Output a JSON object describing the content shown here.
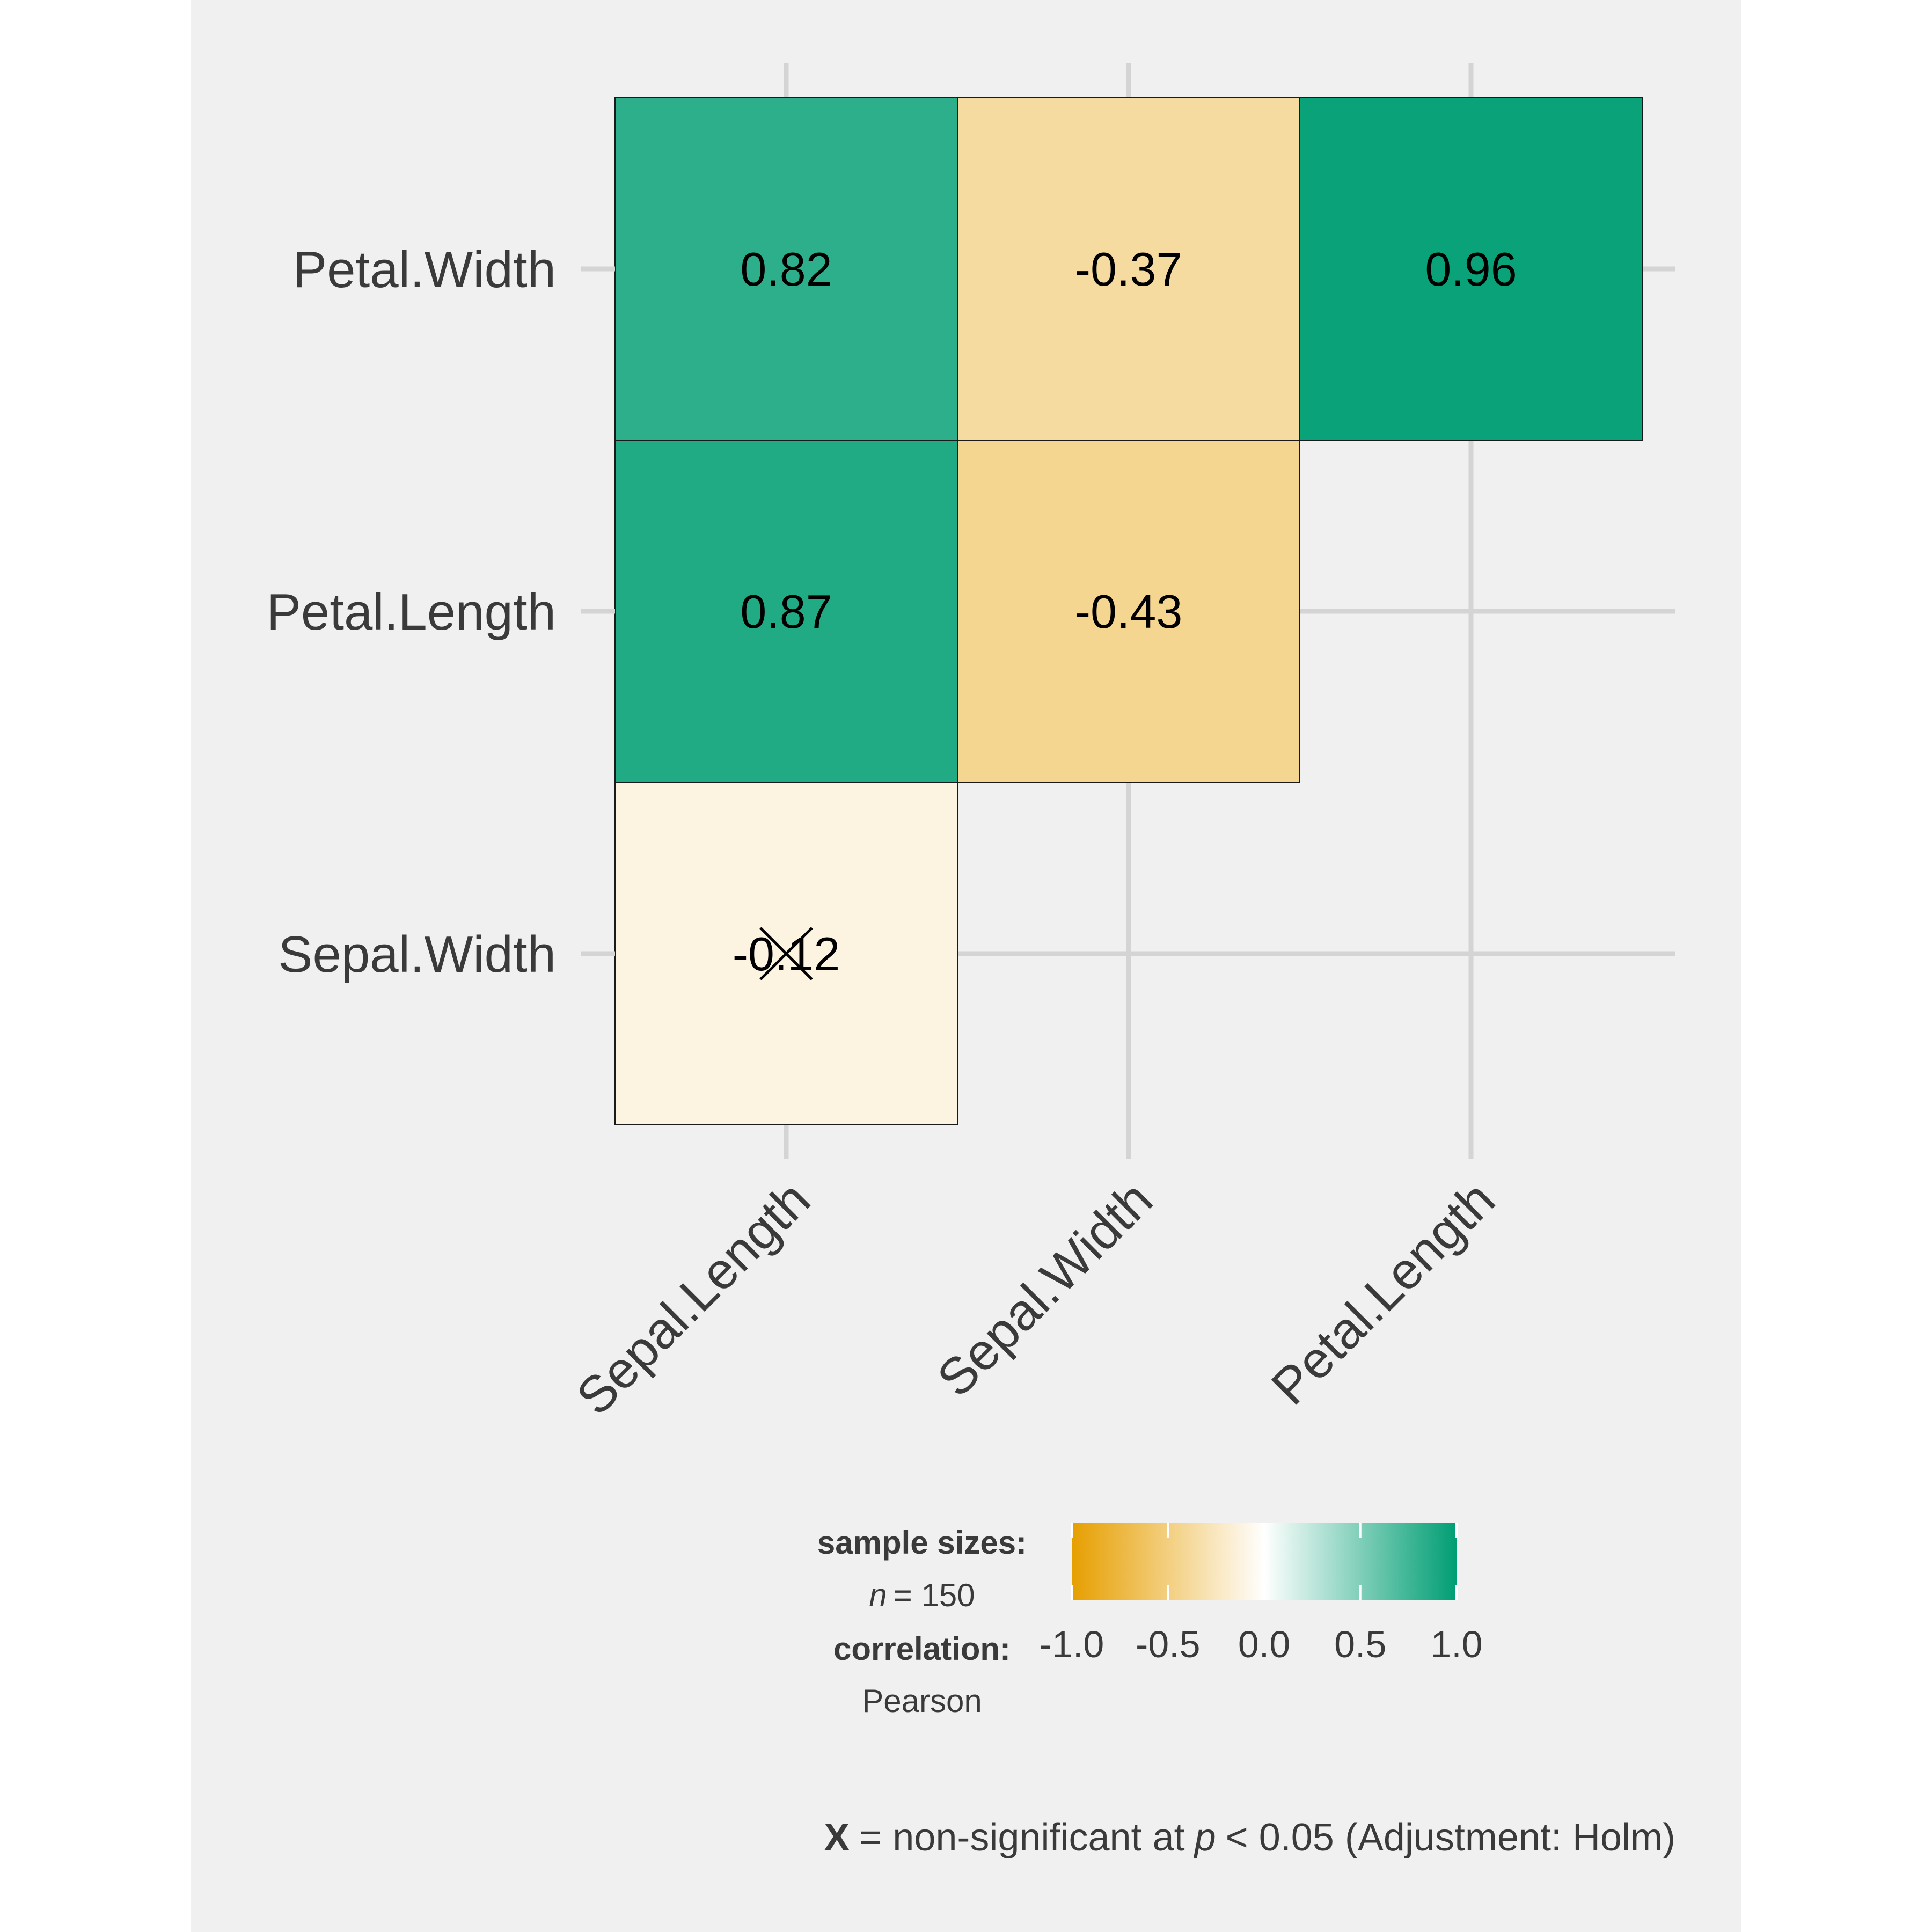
{
  "chart_data": {
    "type": "heatmap",
    "rows": [
      "Petal.Width",
      "Petal.Length",
      "Sepal.Width"
    ],
    "columns": [
      "Sepal.Length",
      "Sepal.Width",
      "Petal.Length"
    ],
    "cells": [
      {
        "row": "Petal.Width",
        "col": "Sepal.Length",
        "value": 0.82,
        "label": "0.82",
        "significant": true
      },
      {
        "row": "Petal.Width",
        "col": "Sepal.Width",
        "value": -0.37,
        "label": "-0.37",
        "significant": true
      },
      {
        "row": "Petal.Width",
        "col": "Petal.Length",
        "value": 0.96,
        "label": "0.96",
        "significant": true
      },
      {
        "row": "Petal.Length",
        "col": "Sepal.Length",
        "value": 0.87,
        "label": "0.87",
        "significant": true
      },
      {
        "row": "Petal.Length",
        "col": "Sepal.Width",
        "value": -0.43,
        "label": "-0.43",
        "significant": true
      },
      {
        "row": "Sepal.Width",
        "col": "Sepal.Length",
        "value": -0.12,
        "label": "-0.12",
        "significant": false
      }
    ],
    "color_scale": {
      "low": "#E69F00",
      "mid": "#FFFFFF",
      "high": "#009E73",
      "limits": [
        -1.0,
        1.0
      ]
    },
    "legend": {
      "sample_title": "sample sizes:",
      "sample_n_symbol": "n",
      "sample_n_value": "= 150",
      "corr_title": "correlation:",
      "corr_method": "Pearson",
      "ticks": [
        "-1.0",
        "-0.5",
        "0.0",
        "0.5",
        "1.0"
      ],
      "tick_values": [
        -1.0,
        -0.5,
        0.0,
        0.5,
        1.0
      ]
    },
    "caption": {
      "mark": "X",
      "part1": "= non-significant at",
      "p_symbol": "p",
      "part2": "< 0.05 (Adjustment: Holm)"
    },
    "grid": true
  }
}
